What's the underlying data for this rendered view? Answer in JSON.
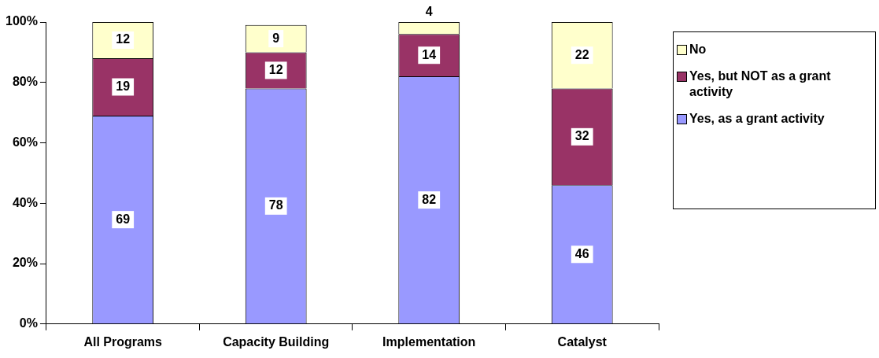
{
  "chart_data": {
    "type": "bar",
    "stacked": true,
    "categories": [
      "All Programs",
      "Capacity Building",
      "Implementation",
      "Catalyst"
    ],
    "series": [
      {
        "name": "Yes, as a grant activity",
        "color": "#9999ff",
        "values": [
          69,
          78,
          82,
          46
        ]
      },
      {
        "name": "Yes, but NOT as a grant activity",
        "color": "#993366",
        "values": [
          19,
          12,
          14,
          32
        ]
      },
      {
        "name": "No",
        "color": "#ffffcc",
        "values": [
          12,
          9,
          4,
          22
        ]
      }
    ],
    "ylim": [
      0,
      100
    ],
    "yticks": [
      {
        "value": 0,
        "label": "0%"
      },
      {
        "value": 20,
        "label": "20%"
      },
      {
        "value": 40,
        "label": "40%"
      },
      {
        "value": 60,
        "label": "60%"
      },
      {
        "value": 80,
        "label": "80%"
      },
      {
        "value": 100,
        "label": "100%"
      }
    ],
    "data_labels": true,
    "grid": false,
    "legend": "right"
  }
}
